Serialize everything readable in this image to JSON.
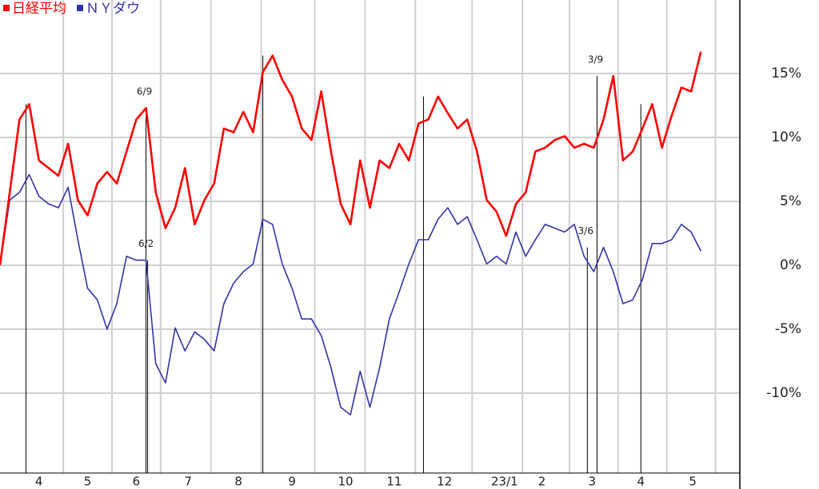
{
  "chart_data": {
    "type": "line",
    "x": [
      0,
      6,
      12,
      18,
      24,
      30,
      36,
      42,
      48,
      54,
      60,
      66,
      72,
      78,
      84,
      90,
      96,
      102,
      108,
      114,
      120,
      126,
      132,
      138,
      144,
      150,
      156,
      162,
      168,
      174,
      180,
      186,
      192,
      198,
      204,
      210,
      216,
      222,
      228,
      234,
      240,
      246,
      252,
      258,
      264,
      270,
      276,
      282,
      288,
      294,
      300,
      306,
      312,
      318,
      324,
      330,
      336,
      342,
      348,
      354,
      360,
      366,
      372,
      378,
      384,
      390,
      396,
      402,
      408,
      414,
      420,
      426,
      432
    ],
    "series": [
      {
        "name": "日経平均",
        "color": "#ff0000",
        "values": [
          0,
          5.7,
          11.4,
          12.6,
          8.2,
          7.6,
          7,
          9.5,
          5.1,
          3.9,
          6.4,
          7.3,
          6.4,
          8.9,
          11.4,
          12.3,
          5.7,
          2.9,
          4.5,
          7.6,
          3.2,
          5.1,
          6.4,
          10.7,
          10.4,
          12,
          10.4,
          15.1,
          16.4,
          14.5,
          13.2,
          10.7,
          9.8,
          13.6,
          8.9,
          4.8,
          3.2,
          8.2,
          4.5,
          8.2,
          7.6,
          9.5,
          8.2,
          11.1,
          11.4,
          13.2,
          11.9,
          10.7,
          11.4,
          8.9,
          5.1,
          4.2,
          2.3,
          4.8,
          5.7,
          8.9,
          9.2,
          9.8,
          10.1,
          9.2,
          9.5,
          9.2,
          11.4,
          14.8,
          8.2,
          8.9,
          10.7,
          12.6,
          9.2,
          11.7,
          13.9,
          13.6,
          16.7
        ]
      },
      {
        "name": "ＮＹダウ",
        "color": "#3333aa",
        "values": [
          0,
          5.1,
          5.7,
          7.1,
          5.4,
          4.8,
          4.5,
          6.1,
          2,
          -1.8,
          -2.7,
          -5,
          -3,
          0.7,
          0.4,
          0.4,
          -7.7,
          -9.2,
          -4.9,
          -6.7,
          -5.2,
          -5.8,
          -6.7,
          -3,
          -1.4,
          -0.5,
          0.1,
          3.6,
          3.2,
          0.1,
          -1.8,
          -4.2,
          -4.2,
          -5.5,
          -8,
          -11.1,
          -11.7,
          -8.3,
          -11.1,
          -8,
          -4.2,
          -2.1,
          0.1,
          2,
          2,
          3.6,
          4.5,
          3.2,
          3.8,
          2,
          0.1,
          0.7,
          0.1,
          2.6,
          0.7,
          2,
          3.2,
          2.9,
          2.6,
          3.2,
          0.7,
          -0.5,
          1.4,
          -0.5,
          -3,
          -2.7,
          -1.1,
          1.7,
          1.7,
          2,
          3.2,
          2.6,
          1.1
        ]
      }
    ],
    "xlim": [
      0,
      456
    ],
    "xticks": [
      {
        "value": 24,
        "label": "4"
      },
      {
        "value": 54,
        "label": "5"
      },
      {
        "value": 84,
        "label": "6"
      },
      {
        "value": 116,
        "label": "7"
      },
      {
        "value": 147,
        "label": "8"
      },
      {
        "value": 180,
        "label": "9"
      },
      {
        "value": 213,
        "label": "10"
      },
      {
        "value": 243,
        "label": "11"
      },
      {
        "value": 274,
        "label": "12"
      },
      {
        "value": 311,
        "label": "23/1"
      },
      {
        "value": 334,
        "label": "2"
      },
      {
        "value": 365,
        "label": "3"
      },
      {
        "value": 395,
        "label": "4"
      },
      {
        "value": 427,
        "label": "5"
      }
    ],
    "xgrid": [
      39,
      69,
      99,
      130,
      161,
      194,
      225,
      256,
      291,
      322,
      351,
      381,
      411,
      441
    ],
    "ylim": [
      -16.25,
      20.75
    ],
    "yticks": [
      {
        "value": 15,
        "label": "15%"
      },
      {
        "value": 10,
        "label": "10%"
      },
      {
        "value": 5,
        "label": "5%"
      },
      {
        "value": 0,
        "label": "0%"
      },
      {
        "value": -5,
        "label": "-5%"
      },
      {
        "value": -10,
        "label": "-10%"
      }
    ],
    "annotations": [
      {
        "x": 16,
        "y": 12.6
      },
      {
        "x": 90,
        "y": 12.3,
        "label": "6/9"
      },
      {
        "x": 91,
        "y": 0.4,
        "label": "6/2"
      },
      {
        "x": 162,
        "y": 16.4
      },
      {
        "x": 261,
        "y": 13.2
      },
      {
        "x": 368,
        "y": 14.8,
        "label": "3/9"
      },
      {
        "x": 362,
        "y": 1.4,
        "label": "3/6"
      },
      {
        "x": 395,
        "y": 12.6
      }
    ],
    "grid": true
  }
}
